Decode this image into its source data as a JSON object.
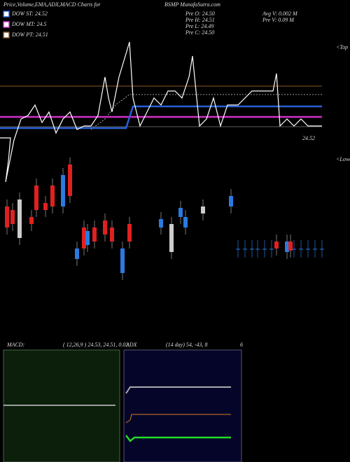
{
  "header": {
    "title": "Price,Volume,EMA,ADX,MACD Charts for",
    "symbol": "BSMP MunafaSutra.com"
  },
  "legend": [
    {
      "label": "DOW ST: 24.52",
      "color": "#2a5fd6"
    },
    {
      "label": "DOW MT: 24.5",
      "color": "#d030c8"
    },
    {
      "label": "DOW PT: 24.51",
      "color": "#8b5a2b"
    }
  ],
  "ohlc": [
    "Pre  O: 24.50",
    "Pre  H: 24.51",
    "Pre  L: 24.49",
    "Pre  C: 24.50"
  ],
  "volume": [
    "Avg V: 0.002  M",
    "Pre  V: 0.09 M"
  ],
  "price_label": "24.52",
  "top_label": "<Top",
  "low_label": "<Lower",
  "macd": {
    "title": "MACD:",
    "params": "( 12,26,9 ) 24.53, 24.51, 0.02"
  },
  "adx": {
    "title": "ADX",
    "params": "(14  day) 54, -43, 8",
    "extra": "6"
  }
}
